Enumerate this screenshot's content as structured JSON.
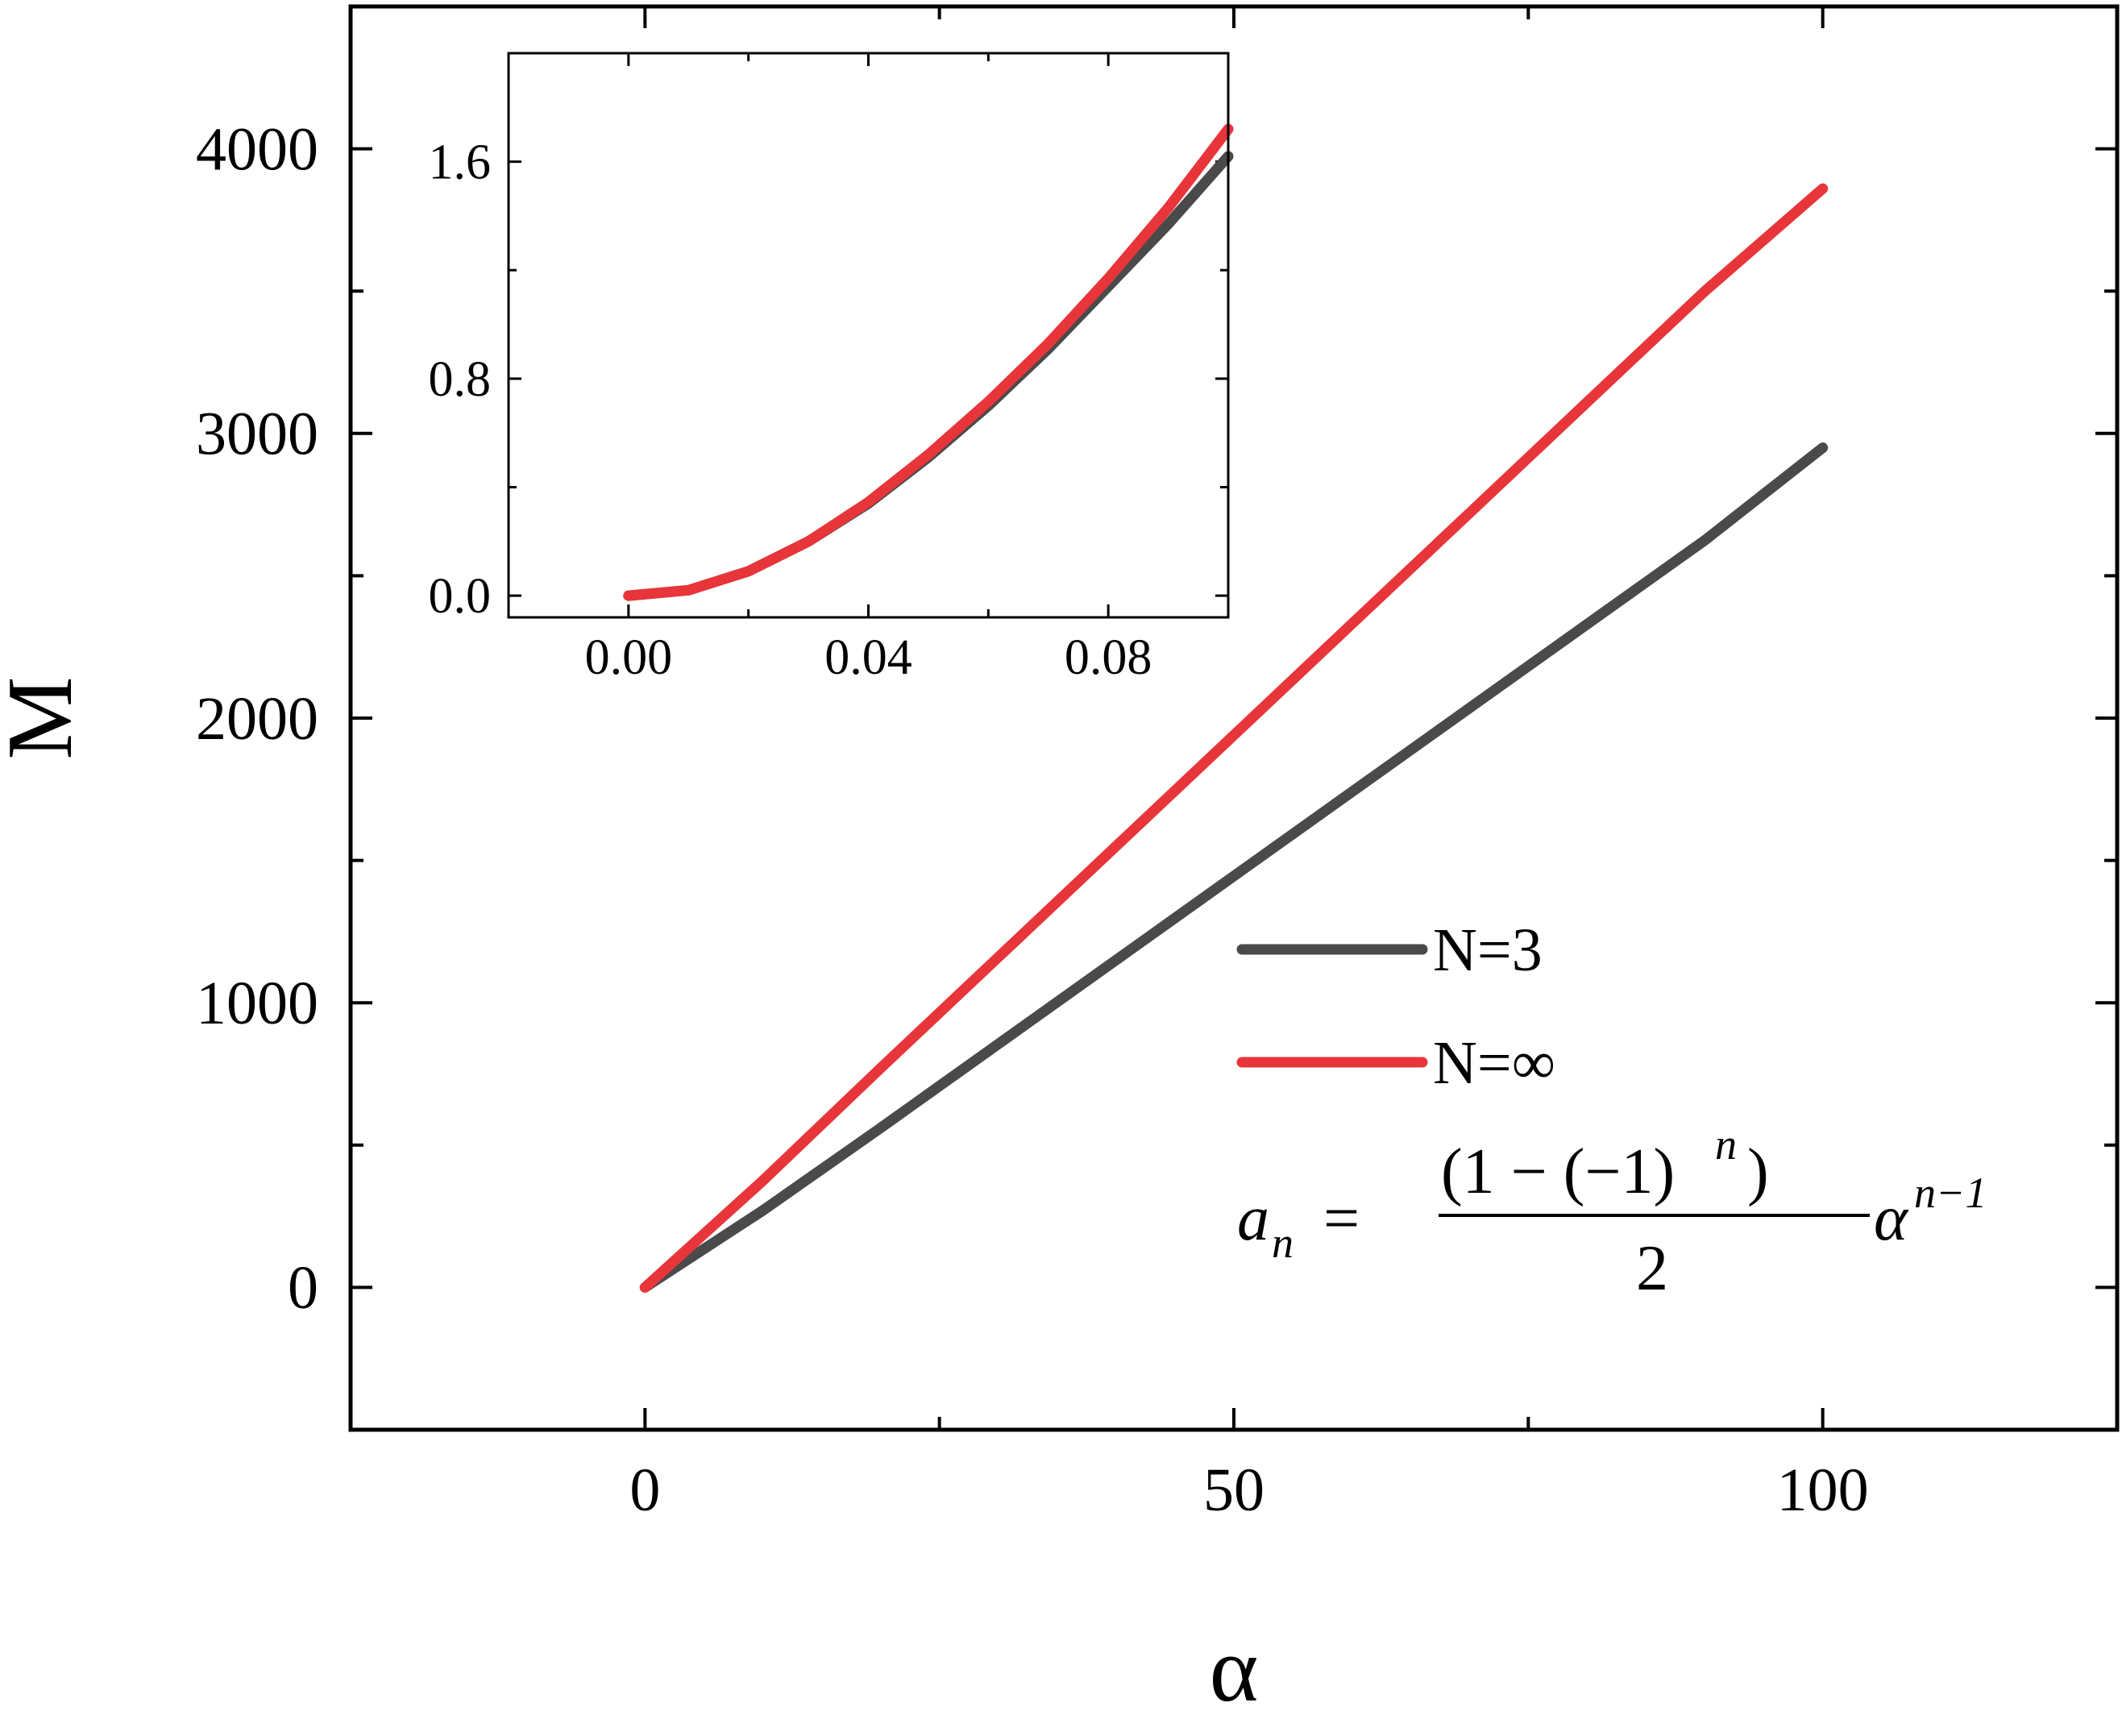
{
  "chart_data": [
    {
      "type": "line",
      "xlabel": "α",
      "ylabel": "M",
      "xlim": [
        -25,
        125
      ],
      "ylim": [
        -500,
        4500
      ],
      "xticks": [
        0,
        50,
        100
      ],
      "xtick_labels": [
        "0",
        "50",
        "100"
      ],
      "xminor_ticks": [
        25,
        75
      ],
      "yticks": [
        0,
        1000,
        2000,
        3000,
        4000
      ],
      "ytick_labels": [
        "0",
        "1000",
        "2000",
        "3000",
        "4000"
      ],
      "yminor_ticks": [
        500,
        1500,
        2500,
        3500
      ],
      "legend_position": "right",
      "series": [
        {
          "name": "N=3",
          "color": "#4a4a4a",
          "x": [
            0,
            10,
            20,
            30,
            40,
            50,
            60,
            70,
            80,
            90,
            100
          ],
          "y": [
            0,
            270,
            560,
            855,
            1150,
            1445,
            1740,
            2035,
            2330,
            2625,
            2950
          ]
        },
        {
          "name": "N=∞",
          "color": "#e8353a",
          "x": [
            0,
            10,
            20,
            30,
            40,
            50,
            60,
            70,
            80,
            90,
            100
          ],
          "y": [
            0,
            375,
            770,
            1160,
            1550,
            1940,
            2330,
            2720,
            3110,
            3500,
            3860
          ]
        }
      ],
      "annotation": "a_n = (1 − (−1)^n)/2 α^(n−1)",
      "annotation_parts": {
        "lhs_symbol": "a",
        "lhs_subscript": "n",
        "equals": "=",
        "numerator_text": "(1 − (−1)",
        "numerator_power": "n",
        "numerator_close": ")",
        "denominator": "2",
        "rhs_symbol": "α",
        "rhs_power": "n−1"
      }
    },
    {
      "type": "line",
      "inset": true,
      "position": "top-left",
      "xlim": [
        -0.02,
        0.1
      ],
      "ylim": [
        -0.08,
        2.0
      ],
      "xticks": [
        0.0,
        0.04,
        0.08
      ],
      "xtick_labels": [
        "0.00",
        "0.04",
        "0.08"
      ],
      "xminor_ticks": [
        -0.02,
        0.02,
        0.06,
        0.1
      ],
      "yticks": [
        0.0,
        0.8,
        1.6
      ],
      "ytick_labels": [
        "0.0",
        "0.8",
        "1.6"
      ],
      "yminor_ticks": [
        0.4,
        1.2
      ],
      "series": [
        {
          "name": "N=3",
          "color": "#4a4a4a",
          "x": [
            0,
            0.01,
            0.02,
            0.03,
            0.04,
            0.05,
            0.06,
            0.07,
            0.08,
            0.09,
            0.1
          ],
          "y": [
            0.0,
            0.02,
            0.09,
            0.2,
            0.34,
            0.51,
            0.7,
            0.91,
            1.14,
            1.37,
            1.62
          ]
        },
        {
          "name": "N=∞",
          "color": "#e8353a",
          "x": [
            0,
            0.01,
            0.02,
            0.03,
            0.04,
            0.05,
            0.06,
            0.07,
            0.08,
            0.09,
            0.1
          ],
          "y": [
            0.0,
            0.02,
            0.09,
            0.2,
            0.345,
            0.52,
            0.715,
            0.93,
            1.17,
            1.43,
            1.72
          ]
        }
      ]
    }
  ]
}
